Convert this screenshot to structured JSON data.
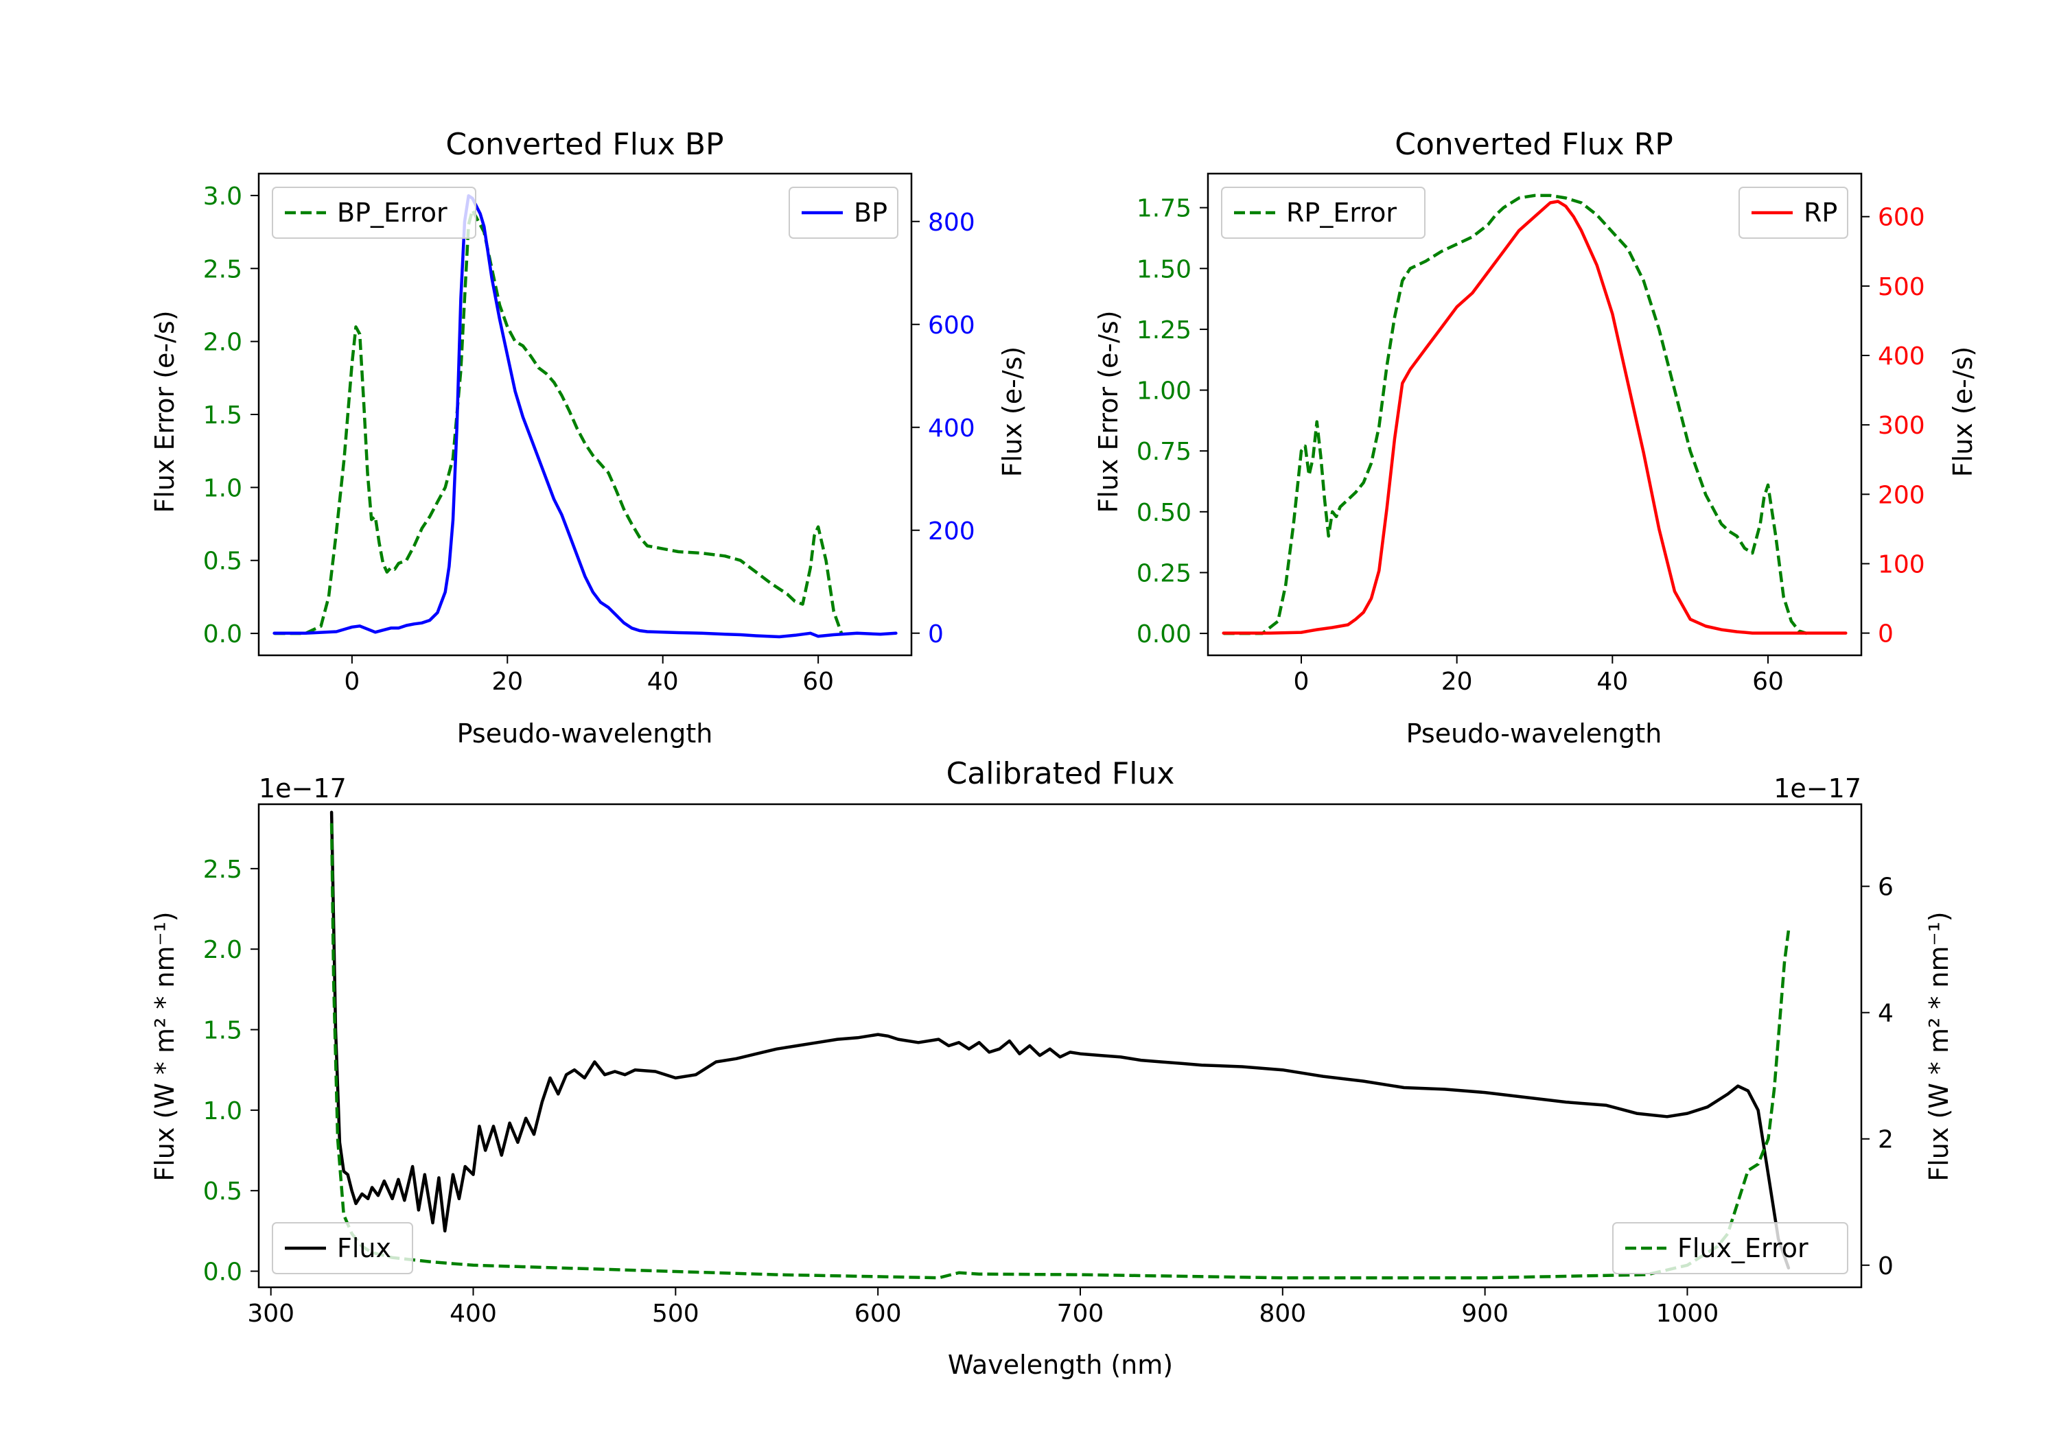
{
  "colors": {
    "green": "#008000",
    "blue": "#0000ff",
    "red": "#ff0000",
    "black": "#000000",
    "legend_border": "#cccccc"
  },
  "chart_data": [
    {
      "id": "bp",
      "type": "line",
      "title": "Converted Flux BP",
      "xlabel": "Pseudo-wavelength",
      "ylabel_left": "Flux Error (e-/s)",
      "ylabel_right": "Flux (e-/s)",
      "xlim": [
        -12,
        72
      ],
      "ylim_left": [
        -0.15,
        3.15
      ],
      "ylim_right": [
        -43,
        893
      ],
      "xticks": [
        0,
        20,
        40,
        60
      ],
      "yticks_left": [
        0.0,
        0.5,
        1.0,
        1.5,
        2.0,
        2.5,
        3.0
      ],
      "yticks_left_labels": [
        "0.0",
        "0.5",
        "1.0",
        "1.5",
        "2.0",
        "2.5",
        "3.0"
      ],
      "yticks_right": [
        0,
        200,
        400,
        600,
        800
      ],
      "yticks_right_labels": [
        "0",
        "200",
        "400",
        "600",
        "800"
      ],
      "series": [
        {
          "name": "BP_Error",
          "axis": "left",
          "color": "#008000",
          "dash": true,
          "legend": "top-left",
          "legend_label": "BP_Error",
          "x": [
            -10,
            -6,
            -4,
            -3,
            -2,
            -1,
            0,
            0.5,
            1,
            1.5,
            2,
            2.5,
            3,
            3.5,
            4,
            4.5,
            5,
            5.5,
            6,
            7,
            8,
            9,
            10,
            11,
            12,
            13,
            14,
            14.5,
            15,
            15.5,
            16,
            17,
            18,
            19,
            20,
            21,
            22,
            23,
            24,
            25,
            26,
            27,
            28,
            29,
            30,
            31,
            32,
            33,
            34,
            35,
            36,
            37,
            38,
            40,
            42,
            45,
            48,
            50,
            52,
            54,
            56,
            57,
            58,
            59,
            59.5,
            60,
            61,
            62,
            63
          ],
          "y": [
            0,
            0,
            0.05,
            0.25,
            0.7,
            1.2,
            1.85,
            2.1,
            2.05,
            1.6,
            1.1,
            0.78,
            0.8,
            0.62,
            0.48,
            0.42,
            0.45,
            0.44,
            0.48,
            0.5,
            0.6,
            0.72,
            0.8,
            0.9,
            1.0,
            1.2,
            1.8,
            2.3,
            2.8,
            2.9,
            2.85,
            2.75,
            2.5,
            2.25,
            2.1,
            2.0,
            1.97,
            1.9,
            1.82,
            1.78,
            1.72,
            1.63,
            1.52,
            1.4,
            1.3,
            1.22,
            1.16,
            1.1,
            0.98,
            0.85,
            0.75,
            0.66,
            0.6,
            0.58,
            0.56,
            0.55,
            0.53,
            0.5,
            0.42,
            0.34,
            0.27,
            0.22,
            0.2,
            0.45,
            0.67,
            0.73,
            0.5,
            0.15,
            0.0
          ]
        },
        {
          "name": "BP",
          "axis": "right",
          "color": "#0000ff",
          "dash": false,
          "legend": "top-right",
          "legend_label": "BP",
          "x": [
            -10,
            -6,
            -2,
            0,
            1,
            2,
            3,
            4,
            5,
            6,
            7,
            8,
            9,
            10,
            11,
            12,
            12.5,
            13,
            13.5,
            14,
            14.5,
            15,
            15.5,
            16,
            16.5,
            17,
            17.5,
            18,
            19,
            20,
            21,
            22,
            23,
            24,
            25,
            26,
            27,
            28,
            29,
            30,
            31,
            32,
            33,
            34,
            35,
            36,
            37,
            38,
            40,
            42,
            45,
            48,
            50,
            52,
            55,
            57,
            59,
            60,
            62,
            65,
            68,
            70
          ],
          "y": [
            0,
            0,
            3,
            12,
            14,
            8,
            2,
            6,
            10,
            10,
            15,
            18,
            20,
            25,
            40,
            80,
            130,
            220,
            400,
            650,
            800,
            850,
            845,
            830,
            815,
            790,
            740,
            690,
            610,
            540,
            470,
            420,
            380,
            340,
            300,
            260,
            230,
            190,
            150,
            110,
            80,
            60,
            50,
            35,
            20,
            10,
            5,
            3,
            2,
            1,
            0,
            -2,
            -3,
            -5,
            -7,
            -4,
            0,
            -6,
            -3,
            0,
            -2,
            0
          ]
        }
      ]
    },
    {
      "id": "rp",
      "type": "line",
      "title": "Converted Flux RP",
      "xlabel": "Pseudo-wavelength",
      "ylabel_left": "Flux Error (e-/s)",
      "ylabel_right": "Flux (e-/s)",
      "xlim": [
        -12,
        72
      ],
      "ylim_left": [
        -0.09,
        1.89
      ],
      "ylim_right": [
        -32,
        662
      ],
      "xticks": [
        0,
        20,
        40,
        60
      ],
      "yticks_left": [
        0.0,
        0.25,
        0.5,
        0.75,
        1.0,
        1.25,
        1.5,
        1.75
      ],
      "yticks_left_labels": [
        "0.00",
        "0.25",
        "0.50",
        "0.75",
        "1.00",
        "1.25",
        "1.50",
        "1.75"
      ],
      "yticks_right": [
        0,
        100,
        200,
        300,
        400,
        500,
        600
      ],
      "yticks_right_labels": [
        "0",
        "100",
        "200",
        "300",
        "400",
        "500",
        "600"
      ],
      "series": [
        {
          "name": "RP_Error",
          "axis": "left",
          "color": "#008000",
          "dash": true,
          "legend": "top-left",
          "legend_label": "RP_Error",
          "x": [
            -10,
            -5,
            -3,
            -2,
            -1,
            0,
            0.5,
            1,
            1.5,
            2,
            2.5,
            3,
            3.5,
            4,
            4.5,
            5,
            6,
            7,
            8,
            9,
            10,
            11,
            12,
            13,
            14,
            16,
            18,
            20,
            22,
            24,
            25,
            26,
            27,
            28,
            30,
            32,
            34,
            36,
            38,
            40,
            42,
            44,
            46,
            48,
            50,
            52,
            54,
            55,
            56,
            57,
            58,
            59,
            59.5,
            60,
            61,
            62,
            63,
            64,
            65
          ],
          "y": [
            0,
            0,
            0.05,
            0.2,
            0.45,
            0.75,
            0.77,
            0.65,
            0.72,
            0.87,
            0.73,
            0.55,
            0.4,
            0.5,
            0.48,
            0.52,
            0.55,
            0.58,
            0.62,
            0.7,
            0.85,
            1.1,
            1.3,
            1.45,
            1.5,
            1.53,
            1.57,
            1.6,
            1.63,
            1.68,
            1.72,
            1.75,
            1.77,
            1.79,
            1.8,
            1.8,
            1.79,
            1.77,
            1.72,
            1.65,
            1.58,
            1.45,
            1.25,
            1.0,
            0.75,
            0.57,
            0.45,
            0.42,
            0.4,
            0.35,
            0.33,
            0.45,
            0.56,
            0.61,
            0.4,
            0.15,
            0.05,
            0.01,
            0
          ]
        },
        {
          "name": "RP",
          "axis": "right",
          "color": "#ff0000",
          "dash": false,
          "legend": "top-right",
          "legend_label": "RP",
          "x": [
            -10,
            -4,
            0,
            2,
            4,
            6,
            7,
            8,
            9,
            10,
            11,
            12,
            13,
            14,
            16,
            18,
            20,
            22,
            24,
            26,
            28,
            30,
            32,
            33,
            34,
            35,
            36,
            38,
            40,
            42,
            44,
            46,
            48,
            50,
            52,
            54,
            56,
            58,
            60,
            62,
            65,
            68,
            70
          ],
          "y": [
            0,
            0,
            1,
            5,
            8,
            12,
            20,
            30,
            50,
            90,
            180,
            280,
            360,
            380,
            410,
            440,
            470,
            490,
            520,
            550,
            580,
            600,
            620,
            622,
            615,
            600,
            580,
            530,
            460,
            360,
            260,
            150,
            60,
            20,
            10,
            5,
            2,
            0,
            0,
            0,
            0,
            0,
            0
          ]
        }
      ]
    },
    {
      "id": "cal",
      "type": "line",
      "title": "Calibrated Flux",
      "xlabel": "Wavelength (nm)",
      "ylabel_left": "Flux (W * m² * nm⁻¹)",
      "ylabel_right": "Flux (W * m² * nm⁻¹)",
      "offset_left": "1e−17",
      "offset_right": "1e−17",
      "xlim": [
        294,
        1086
      ],
      "ylim_left": [
        -0.1,
        2.9
      ],
      "ylim_right": [
        -0.35,
        7.3
      ],
      "xticks": [
        300,
        400,
        500,
        600,
        700,
        800,
        900,
        1000
      ],
      "yticks_left": [
        0.0,
        0.5,
        1.0,
        1.5,
        2.0,
        2.5
      ],
      "yticks_left_labels": [
        "0.0",
        "0.5",
        "1.0",
        "1.5",
        "2.0",
        "2.5"
      ],
      "yticks_right": [
        0,
        2,
        4,
        6
      ],
      "yticks_right_labels": [
        "0",
        "2",
        "4",
        "6"
      ],
      "series": [
        {
          "name": "Flux",
          "axis": "left",
          "color": "#000000",
          "dash": false,
          "legend": "bottom-left",
          "legend_label": "Flux",
          "x": [
            330,
            332,
            334,
            336,
            338,
            340,
            342,
            345,
            348,
            350,
            353,
            356,
            360,
            363,
            366,
            370,
            373,
            376,
            380,
            383,
            386,
            390,
            393,
            396,
            400,
            403,
            406,
            410,
            414,
            418,
            422,
            426,
            430,
            434,
            438,
            442,
            446,
            450,
            455,
            460,
            465,
            470,
            475,
            480,
            490,
            500,
            510,
            520,
            530,
            540,
            550,
            560,
            570,
            580,
            590,
            600,
            605,
            610,
            620,
            630,
            635,
            640,
            645,
            650,
            655,
            660,
            665,
            670,
            675,
            680,
            685,
            690,
            695,
            700,
            710,
            720,
            730,
            740,
            750,
            760,
            780,
            800,
            820,
            840,
            860,
            880,
            900,
            920,
            940,
            960,
            975,
            990,
            1000,
            1010,
            1020,
            1025,
            1030,
            1035,
            1040,
            1045,
            1050
          ],
          "y": [
            2.85,
            1.5,
            0.8,
            0.62,
            0.6,
            0.5,
            0.42,
            0.48,
            0.45,
            0.52,
            0.47,
            0.56,
            0.45,
            0.57,
            0.44,
            0.65,
            0.38,
            0.6,
            0.3,
            0.58,
            0.25,
            0.6,
            0.45,
            0.65,
            0.6,
            0.9,
            0.75,
            0.9,
            0.72,
            0.92,
            0.8,
            0.95,
            0.85,
            1.05,
            1.2,
            1.1,
            1.22,
            1.25,
            1.2,
            1.3,
            1.22,
            1.24,
            1.22,
            1.25,
            1.24,
            1.2,
            1.22,
            1.3,
            1.32,
            1.35,
            1.38,
            1.4,
            1.42,
            1.44,
            1.45,
            1.47,
            1.46,
            1.44,
            1.42,
            1.44,
            1.4,
            1.42,
            1.38,
            1.42,
            1.36,
            1.38,
            1.43,
            1.35,
            1.4,
            1.34,
            1.38,
            1.33,
            1.36,
            1.35,
            1.34,
            1.33,
            1.31,
            1.3,
            1.29,
            1.28,
            1.27,
            1.25,
            1.21,
            1.18,
            1.14,
            1.13,
            1.11,
            1.08,
            1.05,
            1.03,
            0.98,
            0.96,
            0.98,
            1.02,
            1.1,
            1.15,
            1.12,
            1.0,
            0.6,
            0.2,
            0.02
          ]
        },
        {
          "name": "Flux_Error",
          "axis": "right",
          "color": "#008000",
          "dash": true,
          "legend": "bottom-right",
          "legend_label": "Flux_Error",
          "x": [
            330,
            331,
            333,
            336,
            340,
            345,
            350,
            360,
            380,
            400,
            450,
            500,
            550,
            600,
            630,
            640,
            650,
            700,
            800,
            900,
            980,
            1000,
            1010,
            1015,
            1020,
            1025,
            1030,
            1035,
            1040,
            1043,
            1046,
            1048,
            1050
          ],
          "y": [
            7.0,
            4.5,
            2.0,
            0.8,
            0.5,
            0.3,
            0.2,
            0.12,
            0.05,
            0.0,
            -0.05,
            -0.1,
            -0.15,
            -0.18,
            -0.2,
            -0.12,
            -0.14,
            -0.15,
            -0.2,
            -0.2,
            -0.15,
            0.0,
            0.2,
            0.3,
            0.5,
            1.0,
            1.5,
            1.6,
            2.0,
            2.8,
            4.0,
            4.8,
            5.3
          ]
        }
      ]
    }
  ]
}
